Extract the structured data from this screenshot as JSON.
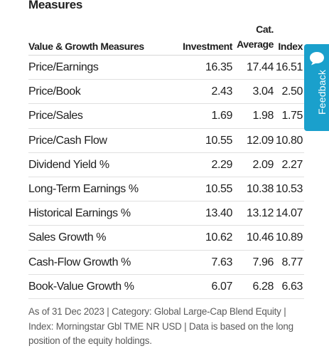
{
  "section": {
    "title": "Measures"
  },
  "table": {
    "headers": {
      "measure": "Value & Growth Measures",
      "investment": "Investment",
      "cat_line1": "Cat.",
      "cat_line2": "Average",
      "index": "Index"
    },
    "rows": [
      {
        "label": "Price/Earnings",
        "investment": "16.35",
        "cat_avg": "17.44",
        "index": "16.51"
      },
      {
        "label": "Price/Book",
        "investment": "2.43",
        "cat_avg": "3.04",
        "index": "2.50"
      },
      {
        "label": "Price/Sales",
        "investment": "1.69",
        "cat_avg": "1.98",
        "index": "1.75"
      },
      {
        "label": "Price/Cash Flow",
        "investment": "10.55",
        "cat_avg": "12.09",
        "index": "10.80"
      },
      {
        "label": "Dividend Yield %",
        "investment": "2.29",
        "cat_avg": "2.09",
        "index": "2.27"
      },
      {
        "label": "Long-Term Earnings %",
        "investment": "10.55",
        "cat_avg": "10.38",
        "index": "10.53"
      },
      {
        "label": "Historical Earnings %",
        "investment": "13.40",
        "cat_avg": "13.12",
        "index": "14.07"
      },
      {
        "label": "Sales Growth %",
        "investment": "10.62",
        "cat_avg": "10.46",
        "index": "10.89"
      },
      {
        "label": "Cash-Flow Growth %",
        "investment": "7.63",
        "cat_avg": "7.96",
        "index": "8.77"
      },
      {
        "label": "Book-Value Growth %",
        "investment": "6.07",
        "cat_avg": "6.28",
        "index": "6.63"
      }
    ]
  },
  "footnote": "As of 31 Dec 2023 | Category: Global Large-Cap Blend Equity | Index: Morningstar Gbl TME NR USD | Data is based on the long position of the equity holdings.",
  "feedback": {
    "label": "Feedback",
    "icon": "chat-bubble-icon",
    "color": "#1aa0cc"
  }
}
